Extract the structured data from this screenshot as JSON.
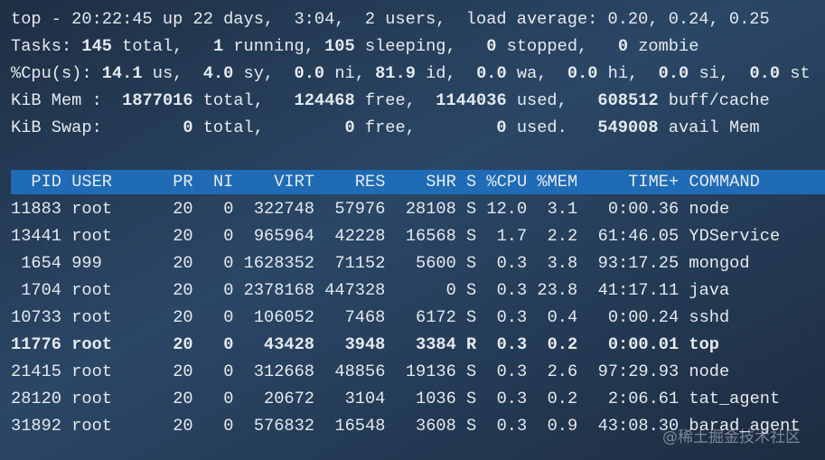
{
  "summary": {
    "lines": [
      [
        {
          "text": "top - 20:22:45 up 22 days,  3:04,  2 users,  load average: 0.20, 0.24, 0.25",
          "bold": false
        }
      ],
      [
        {
          "text": "Tasks: ",
          "bold": false
        },
        {
          "text": "145",
          "bold": true
        },
        {
          "text": " total,   ",
          "bold": false
        },
        {
          "text": "1",
          "bold": true
        },
        {
          "text": " running, ",
          "bold": false
        },
        {
          "text": "105",
          "bold": true
        },
        {
          "text": " sleeping,   ",
          "bold": false
        },
        {
          "text": "0",
          "bold": true
        },
        {
          "text": " stopped,   ",
          "bold": false
        },
        {
          "text": "0",
          "bold": true
        },
        {
          "text": " zombie",
          "bold": false
        }
      ],
      [
        {
          "text": "%Cpu(s): ",
          "bold": false
        },
        {
          "text": "14.1",
          "bold": true
        },
        {
          "text": " us,  ",
          "bold": false
        },
        {
          "text": "4.0",
          "bold": true
        },
        {
          "text": " sy,  ",
          "bold": false
        },
        {
          "text": "0.0",
          "bold": true
        },
        {
          "text": " ni, ",
          "bold": false
        },
        {
          "text": "81.9",
          "bold": true
        },
        {
          "text": " id,  ",
          "bold": false
        },
        {
          "text": "0.0",
          "bold": true
        },
        {
          "text": " wa,  ",
          "bold": false
        },
        {
          "text": "0.0",
          "bold": true
        },
        {
          "text": " hi,  ",
          "bold": false
        },
        {
          "text": "0.0",
          "bold": true
        },
        {
          "text": " si,  ",
          "bold": false
        },
        {
          "text": "0.0",
          "bold": true
        },
        {
          "text": " st",
          "bold": false
        }
      ],
      [
        {
          "text": "KiB Mem :  ",
          "bold": false
        },
        {
          "text": "1877016",
          "bold": true
        },
        {
          "text": " total,   ",
          "bold": false
        },
        {
          "text": "124468",
          "bold": true
        },
        {
          "text": " free,  ",
          "bold": false
        },
        {
          "text": "1144036",
          "bold": true
        },
        {
          "text": " used,   ",
          "bold": false
        },
        {
          "text": "608512",
          "bold": true
        },
        {
          "text": " buff/cache",
          "bold": false
        }
      ],
      [
        {
          "text": "KiB Swap:        ",
          "bold": false
        },
        {
          "text": "0",
          "bold": true
        },
        {
          "text": " total,        ",
          "bold": false
        },
        {
          "text": "0",
          "bold": true
        },
        {
          "text": " free,        ",
          "bold": false
        },
        {
          "text": "0",
          "bold": true
        },
        {
          "text": " used.   ",
          "bold": false
        },
        {
          "text": "549008",
          "bold": true
        },
        {
          "text": " avail Mem",
          "bold": false
        }
      ]
    ]
  },
  "table": {
    "header": [
      "PID",
      "USER",
      "PR",
      "NI",
      "VIRT",
      "RES",
      "SHR",
      "S",
      "%CPU",
      "%MEM",
      "TIME+",
      "COMMAND"
    ],
    "rows": [
      [
        "11883",
        "root",
        "20",
        "0",
        "322748",
        "57976",
        "28108",
        "S",
        "12.0",
        "3.1",
        "0:00.36",
        "node"
      ],
      [
        "13441",
        "root",
        "20",
        "0",
        "965964",
        "42228",
        "16568",
        "S",
        "1.7",
        "2.2",
        "61:46.05",
        "YDService"
      ],
      [
        "1654",
        "999",
        "20",
        "0",
        "1628352",
        "71152",
        "5600",
        "S",
        "0.3",
        "3.8",
        "93:17.25",
        "mongod"
      ],
      [
        "1704",
        "root",
        "20",
        "0",
        "2378168",
        "447328",
        "0",
        "S",
        "0.3",
        "23.8",
        "41:17.11",
        "java"
      ],
      [
        "10733",
        "root",
        "20",
        "0",
        "106052",
        "7468",
        "6172",
        "S",
        "0.3",
        "0.4",
        "0:00.24",
        "sshd"
      ],
      [
        "11776",
        "root",
        "20",
        "0",
        "43428",
        "3948",
        "3384",
        "R",
        "0.3",
        "0.2",
        "0:00.01",
        "top"
      ],
      [
        "21415",
        "root",
        "20",
        "0",
        "312668",
        "48856",
        "19136",
        "S",
        "0.3",
        "2.6",
        "97:29.93",
        "node"
      ],
      [
        "28120",
        "root",
        "20",
        "0",
        "20672",
        "3104",
        "1036",
        "S",
        "0.3",
        "0.2",
        "2:06.61",
        "tat_agent"
      ],
      [
        "31892",
        "root",
        "20",
        "0",
        "576832",
        "16548",
        "3608",
        "S",
        "0.3",
        "0.9",
        "43:08.30",
        "barad_agent"
      ]
    ],
    "bold_row": 5
  },
  "watermark": "@稀土掘金技术社区"
}
